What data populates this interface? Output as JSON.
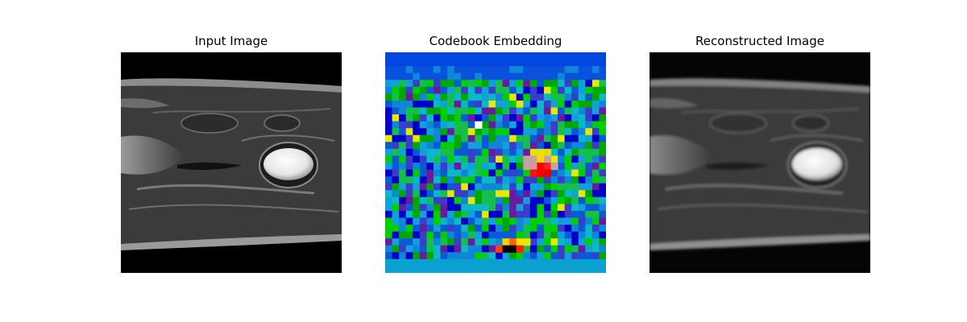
{
  "figure": {
    "panels": [
      {
        "title": "Input Image"
      },
      {
        "title": "Codebook Embedding"
      },
      {
        "title": "Reconstructed Image"
      }
    ]
  }
}
